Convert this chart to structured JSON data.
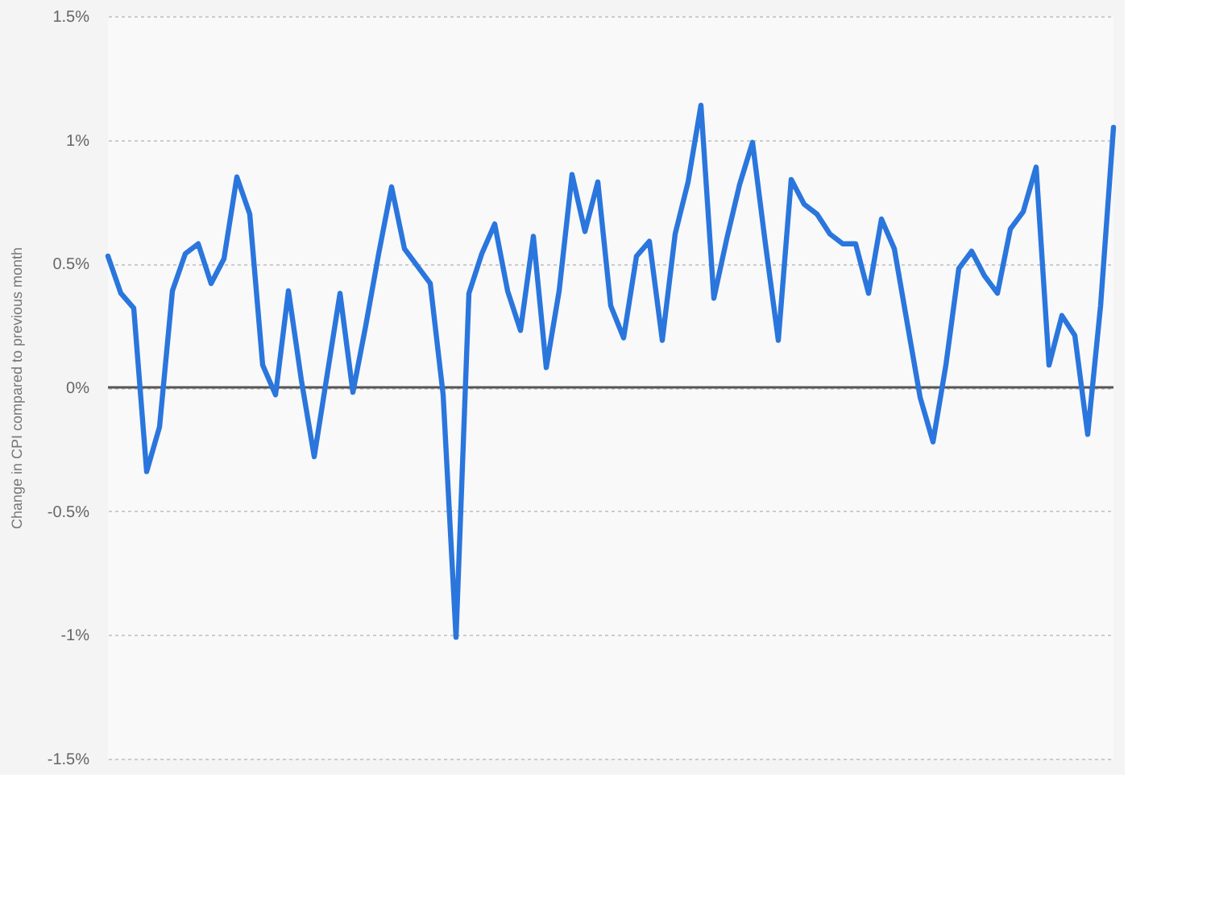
{
  "chart_data": {
    "type": "line",
    "ylabel": "Change in CPI compared to previous month",
    "categories": [
      null,
      null,
      null,
      null,
      null,
      null,
      null,
      null,
      null,
      null,
      null,
      null,
      null,
      null,
      null,
      null,
      null,
      null,
      null,
      null,
      null,
      null,
      null,
      null,
      null,
      null,
      null,
      null,
      null,
      null,
      null,
      null,
      null,
      null,
      null,
      null,
      null,
      null,
      null,
      null,
      null,
      null,
      null,
      null,
      null,
      null,
      null,
      null,
      null,
      null,
      null,
      null,
      null,
      null,
      null,
      null,
      null,
      null,
      null,
      null,
      null,
      null,
      null,
      null,
      null,
      null,
      null,
      null,
      null,
      null,
      null,
      null,
      null,
      null,
      null,
      null,
      null,
      null,
      null
    ],
    "series": [
      {
        "color": "#2a76dd",
        "values": [
          0.53,
          0.38,
          0.32,
          -0.34,
          -0.16,
          0.39,
          0.54,
          0.58,
          0.42,
          0.52,
          0.85,
          0.7,
          0.09,
          -0.03,
          0.39,
          0.03,
          -0.28,
          0.05,
          0.38,
          -0.02,
          0.25,
          0.54,
          0.81,
          0.56,
          0.49,
          0.42,
          -0.03,
          -1.01,
          0.38,
          0.54,
          0.66,
          0.39,
          0.23,
          0.61,
          0.08,
          0.39,
          0.86,
          0.63,
          0.83,
          0.33,
          0.2,
          0.53,
          0.59,
          0.19,
          0.62,
          0.83,
          1.14,
          0.36,
          0.6,
          0.82,
          0.99,
          0.58,
          0.19,
          0.84,
          0.74,
          0.7,
          0.62,
          0.58,
          0.58,
          0.38,
          0.68,
          0.56,
          0.26,
          -0.04,
          -0.22,
          0.09,
          0.48,
          0.55,
          0.45,
          0.38,
          0.64,
          0.71,
          0.89,
          0.09,
          0.29,
          0.21,
          -0.19,
          0.33,
          1.05
        ]
      }
    ],
    "ylim": [
      -1.5,
      1.5
    ],
    "yticks": [
      {
        "value": -1.5,
        "label": "-1.5%"
      },
      {
        "value": -1,
        "label": "-1%"
      },
      {
        "value": -0.5,
        "label": "-0.5%"
      },
      {
        "value": 0,
        "label": "0%"
      },
      {
        "value": 0.5,
        "label": "0.5%"
      },
      {
        "value": 1,
        "label": "1%"
      },
      {
        "value": 1.5,
        "label": "1.5%"
      }
    ],
    "grid": "y",
    "tick_labels": "y",
    "marker": "none",
    "line_style": "solid",
    "ref_lines": [
      {
        "axis": "y",
        "value": 0,
        "color": "#555555"
      }
    ]
  }
}
